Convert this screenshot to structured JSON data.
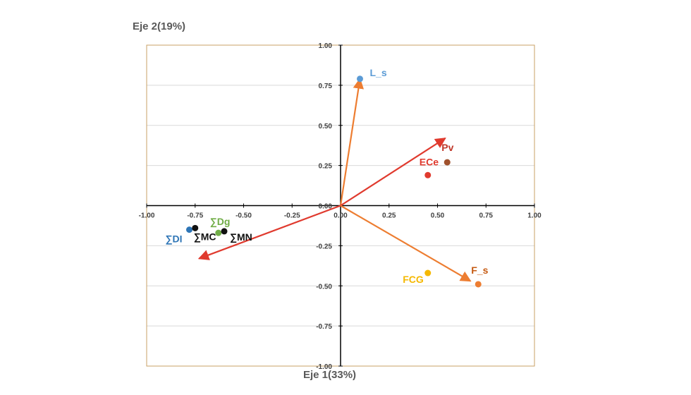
{
  "chart_data": {
    "type": "scatter",
    "title": "",
    "xlabel": "Eje 1(33%)",
    "ylabel": "Eje 2(19%)",
    "xlim": [
      -1.0,
      1.0
    ],
    "ylim": [
      -1.0,
      1.0
    ],
    "ticks": [
      "-1.00",
      "-0.75",
      "-0.50",
      "-0.25",
      "0.00",
      "0.25",
      "0.50",
      "0.75",
      "1.00"
    ],
    "tick_values": [
      -1.0,
      -0.75,
      -0.5,
      -0.25,
      0.0,
      0.25,
      0.5,
      0.75,
      1.0
    ],
    "grid": true,
    "points": [
      {
        "label": "L_s",
        "x": 0.1,
        "y": 0.79,
        "color": "#5b9bd5",
        "label_color": "#5b9bd5"
      },
      {
        "label": "Pv",
        "x": 0.55,
        "y": 0.27,
        "color": "#a0522d",
        "label_color": "#c0392b"
      },
      {
        "label": "ECe",
        "x": 0.45,
        "y": 0.19,
        "color": "#e03a2e",
        "label_color": "#e03a2e"
      },
      {
        "label": "FCG",
        "x": 0.45,
        "y": -0.42,
        "color": "#f5b800",
        "label_color": "#f5b800"
      },
      {
        "label": "F_s",
        "x": 0.71,
        "y": -0.49,
        "color": "#ed7d31",
        "label_color": "#c55a11"
      },
      {
        "label": "∑DI",
        "x": -0.78,
        "y": -0.15,
        "color": "#2e75b6",
        "label_color": "#2e75b6"
      },
      {
        "label": "∑MC",
        "x": -0.75,
        "y": -0.14,
        "color": "#111111",
        "label_color": "#111111"
      },
      {
        "label": "∑Dg",
        "x": -0.63,
        "y": -0.17,
        "color": "#70ad47",
        "label_color": "#70ad47"
      },
      {
        "label": "∑MN",
        "x": -0.6,
        "y": -0.16,
        "color": "#111111",
        "label_color": "#111111"
      }
    ],
    "vectors": [
      {
        "x": 0.1,
        "y": 0.79,
        "color": "#ed7d31"
      },
      {
        "x": 0.54,
        "y": 0.42,
        "color": "#e03a2e"
      },
      {
        "x": 0.67,
        "y": -0.47,
        "color": "#ed7d31"
      },
      {
        "x": -0.73,
        "y": -0.33,
        "color": "#e03a2e"
      }
    ],
    "colors": {
      "frame": "#c8a165",
      "grid": "#d9d9d9",
      "axis": "#000000"
    }
  }
}
